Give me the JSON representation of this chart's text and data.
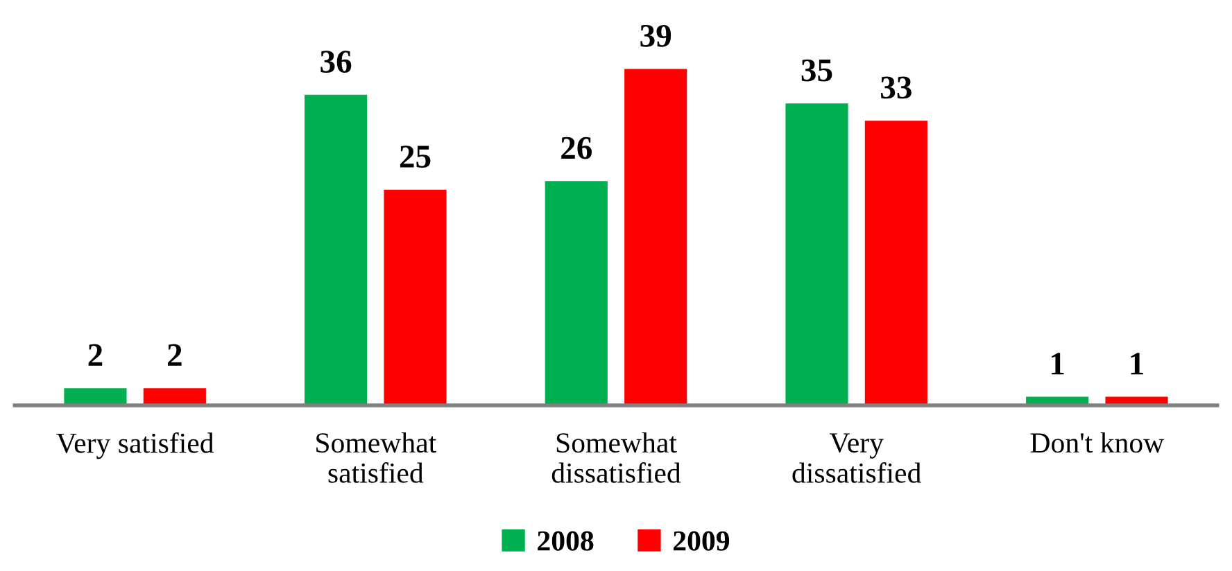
{
  "chart_data": {
    "type": "bar",
    "categories": [
      "Very satisfied",
      "Somewhat\nsatisfied",
      "Somewhat\ndissatisfied",
      "Very\ndissatisfied",
      "Don't know"
    ],
    "series": [
      {
        "name": "2008",
        "color": "#00b050",
        "values": [
          2,
          36,
          26,
          35,
          1
        ]
      },
      {
        "name": "2009",
        "color": "#ff0000",
        "values": [
          2,
          25,
          39,
          33,
          1
        ]
      }
    ],
    "data_labels": true,
    "legend": "bottom",
    "grid": false
  }
}
